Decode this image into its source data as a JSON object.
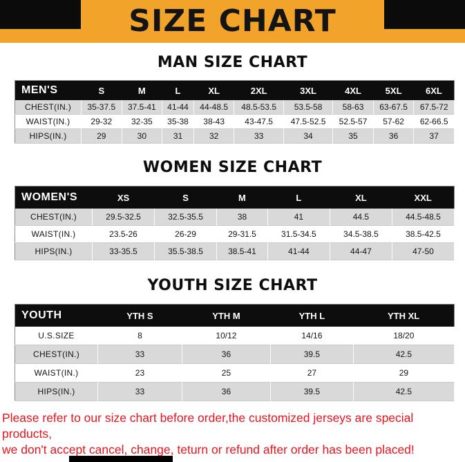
{
  "title": "SIZE CHART",
  "sections": [
    {
      "heading": "MAN SIZE CHART",
      "table": {
        "header": [
          "MEN'S",
          "S",
          "M",
          "L",
          "XL",
          "2XL",
          "3XL",
          "4XL",
          "5XL",
          "6XL"
        ],
        "rows": [
          [
            "CHEST(IN.)",
            "35-37.5",
            "37.5-41",
            "41-44",
            "44-48.5",
            "48.5-53.5",
            "53.5-58",
            "58-63",
            "63-67.5",
            "67.5-72"
          ],
          [
            "WAIST(IN.)",
            "29-32",
            "32-35",
            "35-38",
            "38-43",
            "43-47.5",
            "47.5-52.5",
            "52.5-57",
            "57-62",
            "62-66.5"
          ],
          [
            "HIPS(IN.)",
            "29",
            "30",
            "31",
            "32",
            "33",
            "34",
            "35",
            "36",
            "37"
          ]
        ]
      }
    },
    {
      "heading": "WOMEN SIZE CHART",
      "table": {
        "header": [
          "WOMEN'S",
          "XS",
          "S",
          "M",
          "L",
          "XL",
          "XXL"
        ],
        "rows": [
          [
            "CHEST(IN.)",
            "29.5-32.5",
            "32.5-35.5",
            "38",
            "41",
            "44.5",
            "44.5-48.5"
          ],
          [
            "WAIST(IN.)",
            "23.5-26",
            "26-29",
            "29-31.5",
            "31.5-34.5",
            "34.5-38.5",
            "38.5-42.5"
          ],
          [
            "HIPS(IN.)",
            "33-35.5",
            "35.5-38.5",
            "38.5-41",
            "41-44",
            "44-47",
            "47-50"
          ]
        ]
      }
    },
    {
      "heading": "YOUTH SIZE CHART",
      "table": {
        "header": [
          "YOUTH",
          "YTH S",
          "YTH M",
          "YTH L",
          "YTH XL"
        ],
        "rows": [
          [
            "U.S.SIZE",
            "8",
            "10/12",
            "14/16",
            "18/20"
          ],
          [
            "CHEST(IN.)",
            "33",
            "36",
            "39.5",
            "42.5"
          ],
          [
            "WAIST(IN.)",
            "23",
            "25",
            "27",
            "29"
          ],
          [
            "HIPS(IN.)",
            "33",
            "36",
            "39.5",
            "42.5"
          ]
        ]
      }
    }
  ],
  "footer": {
    "line1": "Please refer to our size chart before order,the customized jerseys are special products,",
    "line2": "we don't accept cancel, change, teturn or refund after order has been placed!"
  },
  "colors": {
    "banner_orange": "#F2A32A",
    "header_black": "#0d0d0d",
    "row_gray": "#d9d9d9",
    "footer_red": "#e8141e"
  }
}
